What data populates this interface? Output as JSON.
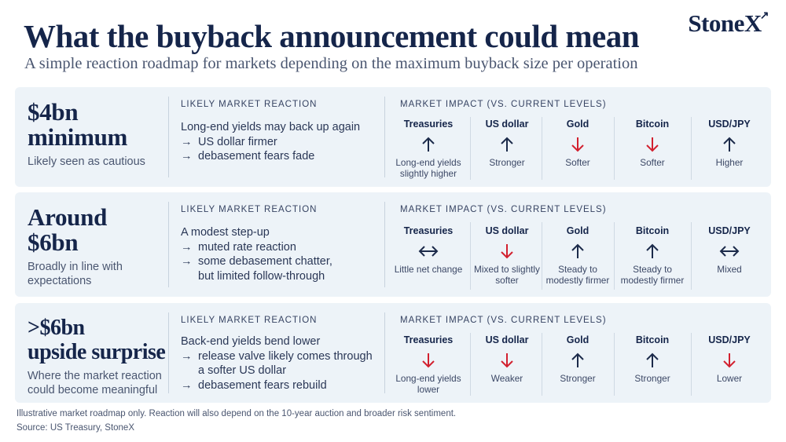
{
  "header": {
    "title": "What the buyback announcement could mean",
    "subtitle": "A simple reaction roadmap for markets depending on the maximum buyback size per operation",
    "logo": "StoneX",
    "logo_mark": "↗"
  },
  "colors": {
    "navy": "#15254a",
    "up": "#1b2a4a",
    "down": "#d2202f",
    "card_bg": "#edf3f8"
  },
  "labels": {
    "reaction": "LIKELY MARKET REACTION",
    "impact": "MARKET IMPACT (VS. CURRENT LEVELS)"
  },
  "scenarios": [
    {
      "title_lines": [
        "$4bn",
        "minimum"
      ],
      "description": "Likely seen as cautious",
      "reaction_intro": "Long-end yields may back up again",
      "bullets": [
        [
          "US dollar firmer"
        ],
        [
          "debasement fears fade"
        ]
      ],
      "assets": [
        {
          "name": "Treasuries",
          "direction": "up",
          "text": "Long-end yields slightly higher"
        },
        {
          "name": "US dollar",
          "direction": "up",
          "text": "Stronger"
        },
        {
          "name": "Gold",
          "direction": "down",
          "text": "Softer"
        },
        {
          "name": "Bitcoin",
          "direction": "down",
          "text": "Softer"
        },
        {
          "name": "USD/JPY",
          "direction": "up",
          "text": "Higher"
        }
      ]
    },
    {
      "title_lines": [
        "Around",
        "$6bn"
      ],
      "description": "Broadly in line with expectations",
      "reaction_intro": "A modest step-up",
      "bullets": [
        [
          "muted rate reaction"
        ],
        [
          "some debasement chatter,",
          "but limited follow-through"
        ]
      ],
      "assets": [
        {
          "name": "Treasuries",
          "direction": "flat",
          "text": "Little net change"
        },
        {
          "name": "US dollar",
          "direction": "down",
          "text": "Mixed to slightly softer"
        },
        {
          "name": "Gold",
          "direction": "up",
          "text": "Steady to modestly firmer"
        },
        {
          "name": "Bitcoin",
          "direction": "up",
          "text": "Steady to modestly firmer"
        },
        {
          "name": "USD/JPY",
          "direction": "flat",
          "text": "Mixed"
        }
      ]
    },
    {
      "title_lines": [
        ">$6bn",
        "upside surprise"
      ],
      "description": "Where the market reaction could become meaningful",
      "reaction_intro": "Back-end yields bend lower",
      "bullets": [
        [
          "release valve likely comes through",
          "a softer US dollar"
        ],
        [
          "debasement fears rebuild"
        ]
      ],
      "assets": [
        {
          "name": "Treasuries",
          "direction": "down",
          "text": "Long-end yields lower"
        },
        {
          "name": "US dollar",
          "direction": "down",
          "text": "Weaker"
        },
        {
          "name": "Gold",
          "direction": "up",
          "text": "Stronger"
        },
        {
          "name": "Bitcoin",
          "direction": "up",
          "text": "Stronger"
        },
        {
          "name": "USD/JPY",
          "direction": "down",
          "text": "Lower"
        }
      ]
    }
  ],
  "footer": {
    "note": "Illustrative market roadmap only. Reaction will also depend on the 10-year auction and broader risk sentiment.",
    "source": "Source: US Treasury, StoneX"
  }
}
